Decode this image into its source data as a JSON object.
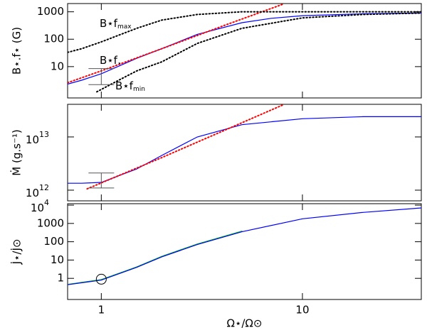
{
  "chart_data": [
    {
      "type": "line",
      "ylabel": "B⋆.f⋆ (G)",
      "xscale": "log",
      "yscale": "log",
      "xlim": [
        0.68,
        39
      ],
      "xticks": [
        1,
        10
      ],
      "ylim": [
        0.72,
        2000
      ],
      "yticks": [
        10,
        100,
        1000
      ],
      "series": [
        {
          "color": "#0000ff",
          "style": "solid",
          "x": [
            0.68,
            0.8,
            1,
            1.5,
            2,
            3,
            5,
            7,
            10,
            20,
            39
          ],
          "values": [
            2.3,
            3.2,
            5.5,
            20,
            45,
            150,
            400,
            580,
            720,
            850,
            900
          ]
        },
        {
          "color": "#ff0000",
          "style": "dotted",
          "x": [
            0.68,
            1,
            2,
            4,
            8
          ],
          "values": [
            2.6,
            7,
            45,
            300,
            1900
          ]
        },
        {
          "color": "#000000",
          "style": "dotted",
          "x": [
            0.68,
            0.8,
            1,
            1.5,
            2,
            3,
            5,
            10,
            39
          ],
          "values": [
            33,
            45,
            80,
            250,
            500,
            800,
            1000,
            1000,
            1000
          ]
        },
        {
          "color": "#000000",
          "style": "dotted",
          "x": [
            0.95,
            1.2,
            1.5,
            2,
            3,
            5,
            10,
            20,
            39
          ],
          "values": [
            1.2,
            3,
            7,
            15,
            70,
            250,
            600,
            800,
            900
          ]
        }
      ],
      "errorbar": {
        "x": 1,
        "low": 2.2,
        "high": 8.5
      },
      "annotations": [
        {
          "text": "B⋆f",
          "sub": "max"
        },
        {
          "text": "B⋆f",
          "sub": "⋆"
        },
        {
          "text": "B⋆f",
          "sub": "min"
        }
      ]
    },
    {
      "type": "line",
      "ylabel": "Ṁ (g.s⁻¹)",
      "xscale": "log",
      "yscale": "log",
      "xlim": [
        0.68,
        39
      ],
      "xticks": [
        1,
        10
      ],
      "ylim": [
        630000000000,
        41000000000000
      ],
      "yticks": [
        {
          "value": 1000000000000,
          "label": "10",
          "sup": "12"
        },
        {
          "value": 10000000000000,
          "label": "10",
          "sup": "13"
        }
      ],
      "series": [
        {
          "color": "#0000ff",
          "style": "solid",
          "x": [
            0.68,
            0.8,
            1,
            1.5,
            2,
            3,
            5,
            10,
            20,
            39
          ],
          "values": [
            1350000000000,
            1350000000000,
            1400000000000,
            2500000000000,
            4500000000000,
            10000000000000,
            17000000000000,
            22000000000000,
            24000000000000,
            24000000000000
          ]
        },
        {
          "color": "#ff0000",
          "style": "dotted",
          "x": [
            0.85,
            2,
            4,
            8
          ],
          "values": [
            1060000000000,
            4100000000000,
            12800000000000,
            40000000000000
          ]
        }
      ],
      "errorbar": {
        "x": 1,
        "low": 1100000000000,
        "high": 2100000000000
      }
    },
    {
      "type": "line",
      "ylabel": "J̇⋆/J̇⊙",
      "xlabel": "Ω⋆/Ω⊙",
      "xscale": "log",
      "yscale": "log",
      "xlim": [
        0.68,
        39
      ],
      "xticks": [
        1,
        10
      ],
      "ylim": [
        0.07,
        12000
      ],
      "yticks": [
        1,
        10,
        100,
        1000,
        {
          "value": 10000,
          "label": "10",
          "sup": "4"
        }
      ],
      "series": [
        {
          "color": "#00c000",
          "style": "solid",
          "x": [
            0.68,
            1,
            1.5,
            2,
            3,
            5
          ],
          "values": [
            0.47,
            0.85,
            4.2,
            16,
            75,
            380
          ]
        },
        {
          "color": "#0000ff",
          "style": "solid",
          "x": [
            0.68,
            1,
            1.5,
            2,
            3,
            5,
            10,
            20,
            39
          ],
          "values": [
            0.45,
            0.8,
            4,
            15,
            70,
            350,
            1800,
            4000,
            7000
          ]
        }
      ],
      "marker": {
        "x": 1,
        "y": 0.9
      }
    }
  ]
}
